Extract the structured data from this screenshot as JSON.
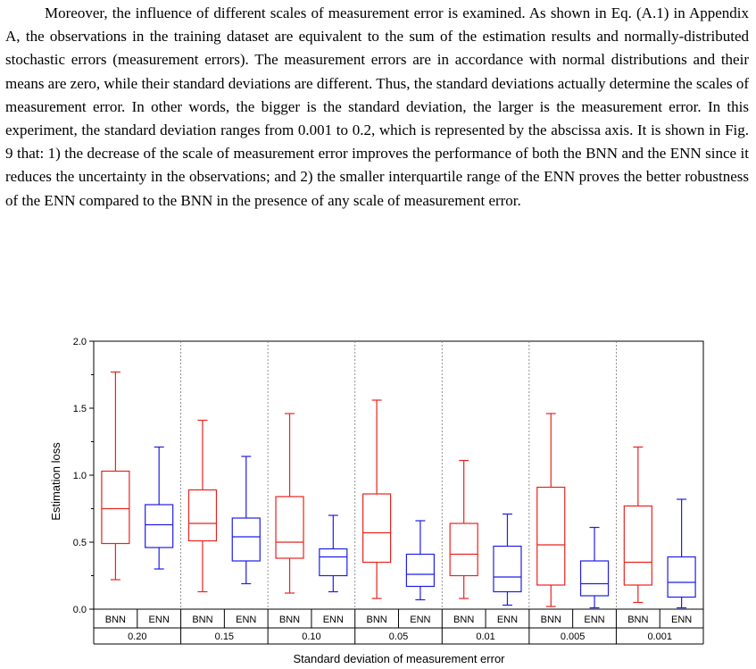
{
  "paragraph": "Moreover, the influence of different scales of measurement error is examined. As shown in Eq. (A.1) in Appendix A, the observations in the training dataset are equivalent to the sum of the estimation results and normally-distributed stochastic errors (measurement errors). The measurement errors are in accordance with normal distributions and their means are zero, while their standard deviations are different. Thus, the standard deviations actually determine the scales of measurement error. In other words, the bigger is the standard deviation, the larger is the measurement error. In this experiment, the standard deviation ranges from 0.001 to 0.2, which is represented by the abscissa axis. It is shown in Fig. 9 that: 1) the decrease of the scale of measurement error improves the performance of both the BNN and the ENN since it reduces the uncertainty in the observations; and 2) the smaller interquartile range of the ENN proves the better robustness of the ENN compared to the BNN in the presence of any scale of measurement error.",
  "chart_data": {
    "type": "box",
    "ylabel": "Estimation loss",
    "xlabel": "Standard deviation of measurement error",
    "ylim": [
      0,
      2.0
    ],
    "yticks": [
      "0.0",
      "0.5",
      "1.0",
      "1.5",
      "2.0"
    ],
    "groups": [
      "0.20",
      "0.15",
      "0.10",
      "0.05",
      "0.01",
      "0.005",
      "0.001"
    ],
    "series_labels": [
      "BNN",
      "ENN"
    ],
    "colors": {
      "BNN": "#e8231f",
      "ENN": "#1f1fe6"
    },
    "boxes": [
      {
        "group": "0.20",
        "series": "BNN",
        "min": 0.22,
        "q1": 0.49,
        "median": 0.75,
        "q3": 1.03,
        "max": 1.77
      },
      {
        "group": "0.20",
        "series": "ENN",
        "min": 0.3,
        "q1": 0.46,
        "median": 0.63,
        "q3": 0.78,
        "max": 1.21
      },
      {
        "group": "0.15",
        "series": "BNN",
        "min": 0.13,
        "q1": 0.51,
        "median": 0.64,
        "q3": 0.89,
        "max": 1.41
      },
      {
        "group": "0.15",
        "series": "ENN",
        "min": 0.19,
        "q1": 0.36,
        "median": 0.54,
        "q3": 0.68,
        "max": 1.14
      },
      {
        "group": "0.10",
        "series": "BNN",
        "min": 0.12,
        "q1": 0.38,
        "median": 0.5,
        "q3": 0.84,
        "max": 1.46
      },
      {
        "group": "0.10",
        "series": "ENN",
        "min": 0.13,
        "q1": 0.25,
        "median": 0.39,
        "q3": 0.45,
        "max": 0.7
      },
      {
        "group": "0.05",
        "series": "BNN",
        "min": 0.08,
        "q1": 0.35,
        "median": 0.57,
        "q3": 0.86,
        "max": 1.56
      },
      {
        "group": "0.05",
        "series": "ENN",
        "min": 0.07,
        "q1": 0.17,
        "median": 0.26,
        "q3": 0.41,
        "max": 0.66
      },
      {
        "group": "0.01",
        "series": "BNN",
        "min": 0.08,
        "q1": 0.25,
        "median": 0.41,
        "q3": 0.64,
        "max": 1.11
      },
      {
        "group": "0.01",
        "series": "ENN",
        "min": 0.03,
        "q1": 0.13,
        "median": 0.24,
        "q3": 0.47,
        "max": 0.71
      },
      {
        "group": "0.005",
        "series": "BNN",
        "min": 0.02,
        "q1": 0.18,
        "median": 0.48,
        "q3": 0.91,
        "max": 1.46
      },
      {
        "group": "0.005",
        "series": "ENN",
        "min": 0.01,
        "q1": 0.1,
        "median": 0.19,
        "q3": 0.36,
        "max": 0.61
      },
      {
        "group": "0.001",
        "series": "BNN",
        "min": 0.05,
        "q1": 0.18,
        "median": 0.35,
        "q3": 0.77,
        "max": 1.21
      },
      {
        "group": "0.001",
        "series": "ENN",
        "min": 0.01,
        "q1": 0.09,
        "median": 0.2,
        "q3": 0.39,
        "max": 0.82
      }
    ]
  }
}
